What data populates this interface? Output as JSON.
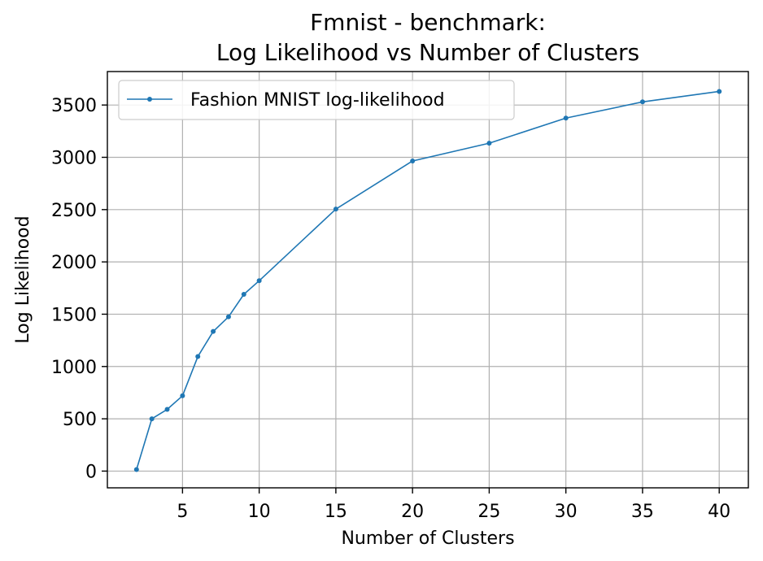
{
  "chart_data": {
    "type": "line",
    "title": "Fmnist - benchmark:",
    "subtitle": "Log Likelihood vs Number of Clusters",
    "xlabel": "Number of Clusters",
    "ylabel": "Log Likelihood",
    "xlim": [
      0.1,
      41.9
    ],
    "ylim": [
      -160,
      3820
    ],
    "xticks": [
      5,
      10,
      15,
      20,
      25,
      30,
      35,
      40
    ],
    "yticks": [
      0,
      500,
      1000,
      1500,
      2000,
      2500,
      3000,
      3500
    ],
    "grid": true,
    "legend_position": "upper-left",
    "series": [
      {
        "name": "Fashion MNIST log-likelihood",
        "color": "#1f77b4",
        "marker": "circle",
        "x": [
          2,
          3,
          4,
          5,
          6,
          7,
          8,
          9,
          10,
          15,
          20,
          25,
          30,
          35,
          40
        ],
        "y": [
          15,
          500,
          590,
          720,
          1095,
          1335,
          1475,
          1690,
          1820,
          2505,
          2965,
          3135,
          3375,
          3530,
          3630
        ]
      }
    ]
  }
}
